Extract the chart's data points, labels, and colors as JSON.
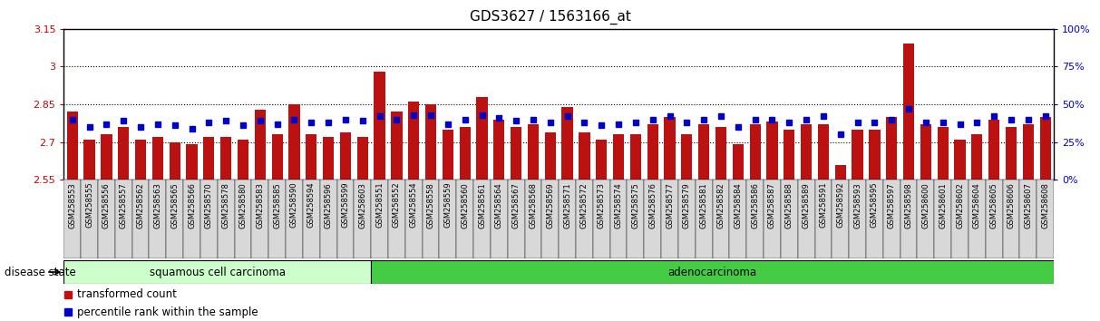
{
  "title": "GDS3627 / 1563166_at",
  "ylim_left": [
    2.55,
    3.15
  ],
  "ylim_right": [
    0,
    100
  ],
  "yticks_left": [
    2.55,
    2.7,
    2.85,
    3.0,
    3.15
  ],
  "yticks_right": [
    0,
    25,
    50,
    75,
    100
  ],
  "ytick_labels_left": [
    "2.55",
    "2.7",
    "2.85",
    "3",
    "3.15"
  ],
  "ytick_labels_right": [
    "0%",
    "25%",
    "50%",
    "75%",
    "100%"
  ],
  "left_axis_color": "#cc0000",
  "right_axis_color": "#0000cc",
  "samples": [
    "GSM258553",
    "GSM258555",
    "GSM258556",
    "GSM258557",
    "GSM258562",
    "GSM258563",
    "GSM258565",
    "GSM258566",
    "GSM258570",
    "GSM258578",
    "GSM258580",
    "GSM258583",
    "GSM258585",
    "GSM258590",
    "GSM258594",
    "GSM258596",
    "GSM258599",
    "GSM258603",
    "GSM258551",
    "GSM258552",
    "GSM258554",
    "GSM258558",
    "GSM258559",
    "GSM258560",
    "GSM258561",
    "GSM258564",
    "GSM258567",
    "GSM258568",
    "GSM258569",
    "GSM258571",
    "GSM258572",
    "GSM258573",
    "GSM258574",
    "GSM258575",
    "GSM258576",
    "GSM258577",
    "GSM258579",
    "GSM258581",
    "GSM258582",
    "GSM258584",
    "GSM258586",
    "GSM258587",
    "GSM258588",
    "GSM258589",
    "GSM258591",
    "GSM258592",
    "GSM258593",
    "GSM258595",
    "GSM258597",
    "GSM258598",
    "GSM258600",
    "GSM258601",
    "GSM258602",
    "GSM258604",
    "GSM258605",
    "GSM258606",
    "GSM258607",
    "GSM258608"
  ],
  "red_values": [
    2.82,
    2.71,
    2.73,
    2.76,
    2.71,
    2.72,
    2.7,
    2.69,
    2.72,
    2.72,
    2.71,
    2.83,
    2.73,
    2.85,
    2.73,
    2.72,
    2.74,
    2.72,
    2.98,
    2.82,
    2.86,
    2.85,
    2.75,
    2.76,
    2.88,
    2.79,
    2.76,
    2.77,
    2.74,
    2.84,
    2.74,
    2.71,
    2.73,
    2.73,
    2.77,
    2.8,
    2.73,
    2.77,
    2.76,
    2.69,
    2.77,
    2.78,
    2.75,
    2.77,
    2.77,
    2.61,
    2.75,
    2.75,
    2.8,
    3.09,
    2.77,
    2.76,
    2.71,
    2.73,
    2.79,
    2.76,
    2.77,
    2.8
  ],
  "blue_percentiles": [
    40,
    35,
    37,
    39,
    35,
    37,
    36,
    34,
    38,
    39,
    36,
    39,
    37,
    40,
    38,
    38,
    40,
    39,
    42,
    40,
    43,
    43,
    37,
    40,
    43,
    41,
    39,
    40,
    38,
    42,
    38,
    36,
    37,
    38,
    40,
    42,
    38,
    40,
    42,
    35,
    40,
    40,
    38,
    40,
    42,
    30,
    38,
    38,
    40,
    47,
    38,
    38,
    37,
    38,
    42,
    40,
    40,
    42
  ],
  "group1_label": "squamous cell carcinoma",
  "group2_label": "adenocarcinoma",
  "group1_count": 18,
  "group2_count": 40,
  "group1_color": "#ccffcc",
  "group2_color": "#44cc44",
  "bar_color": "#bb1111",
  "dot_color": "#0000cc",
  "legend_bar_label": "transformed count",
  "legend_dot_label": "percentile rank within the sample",
  "disease_state_label": "disease state"
}
